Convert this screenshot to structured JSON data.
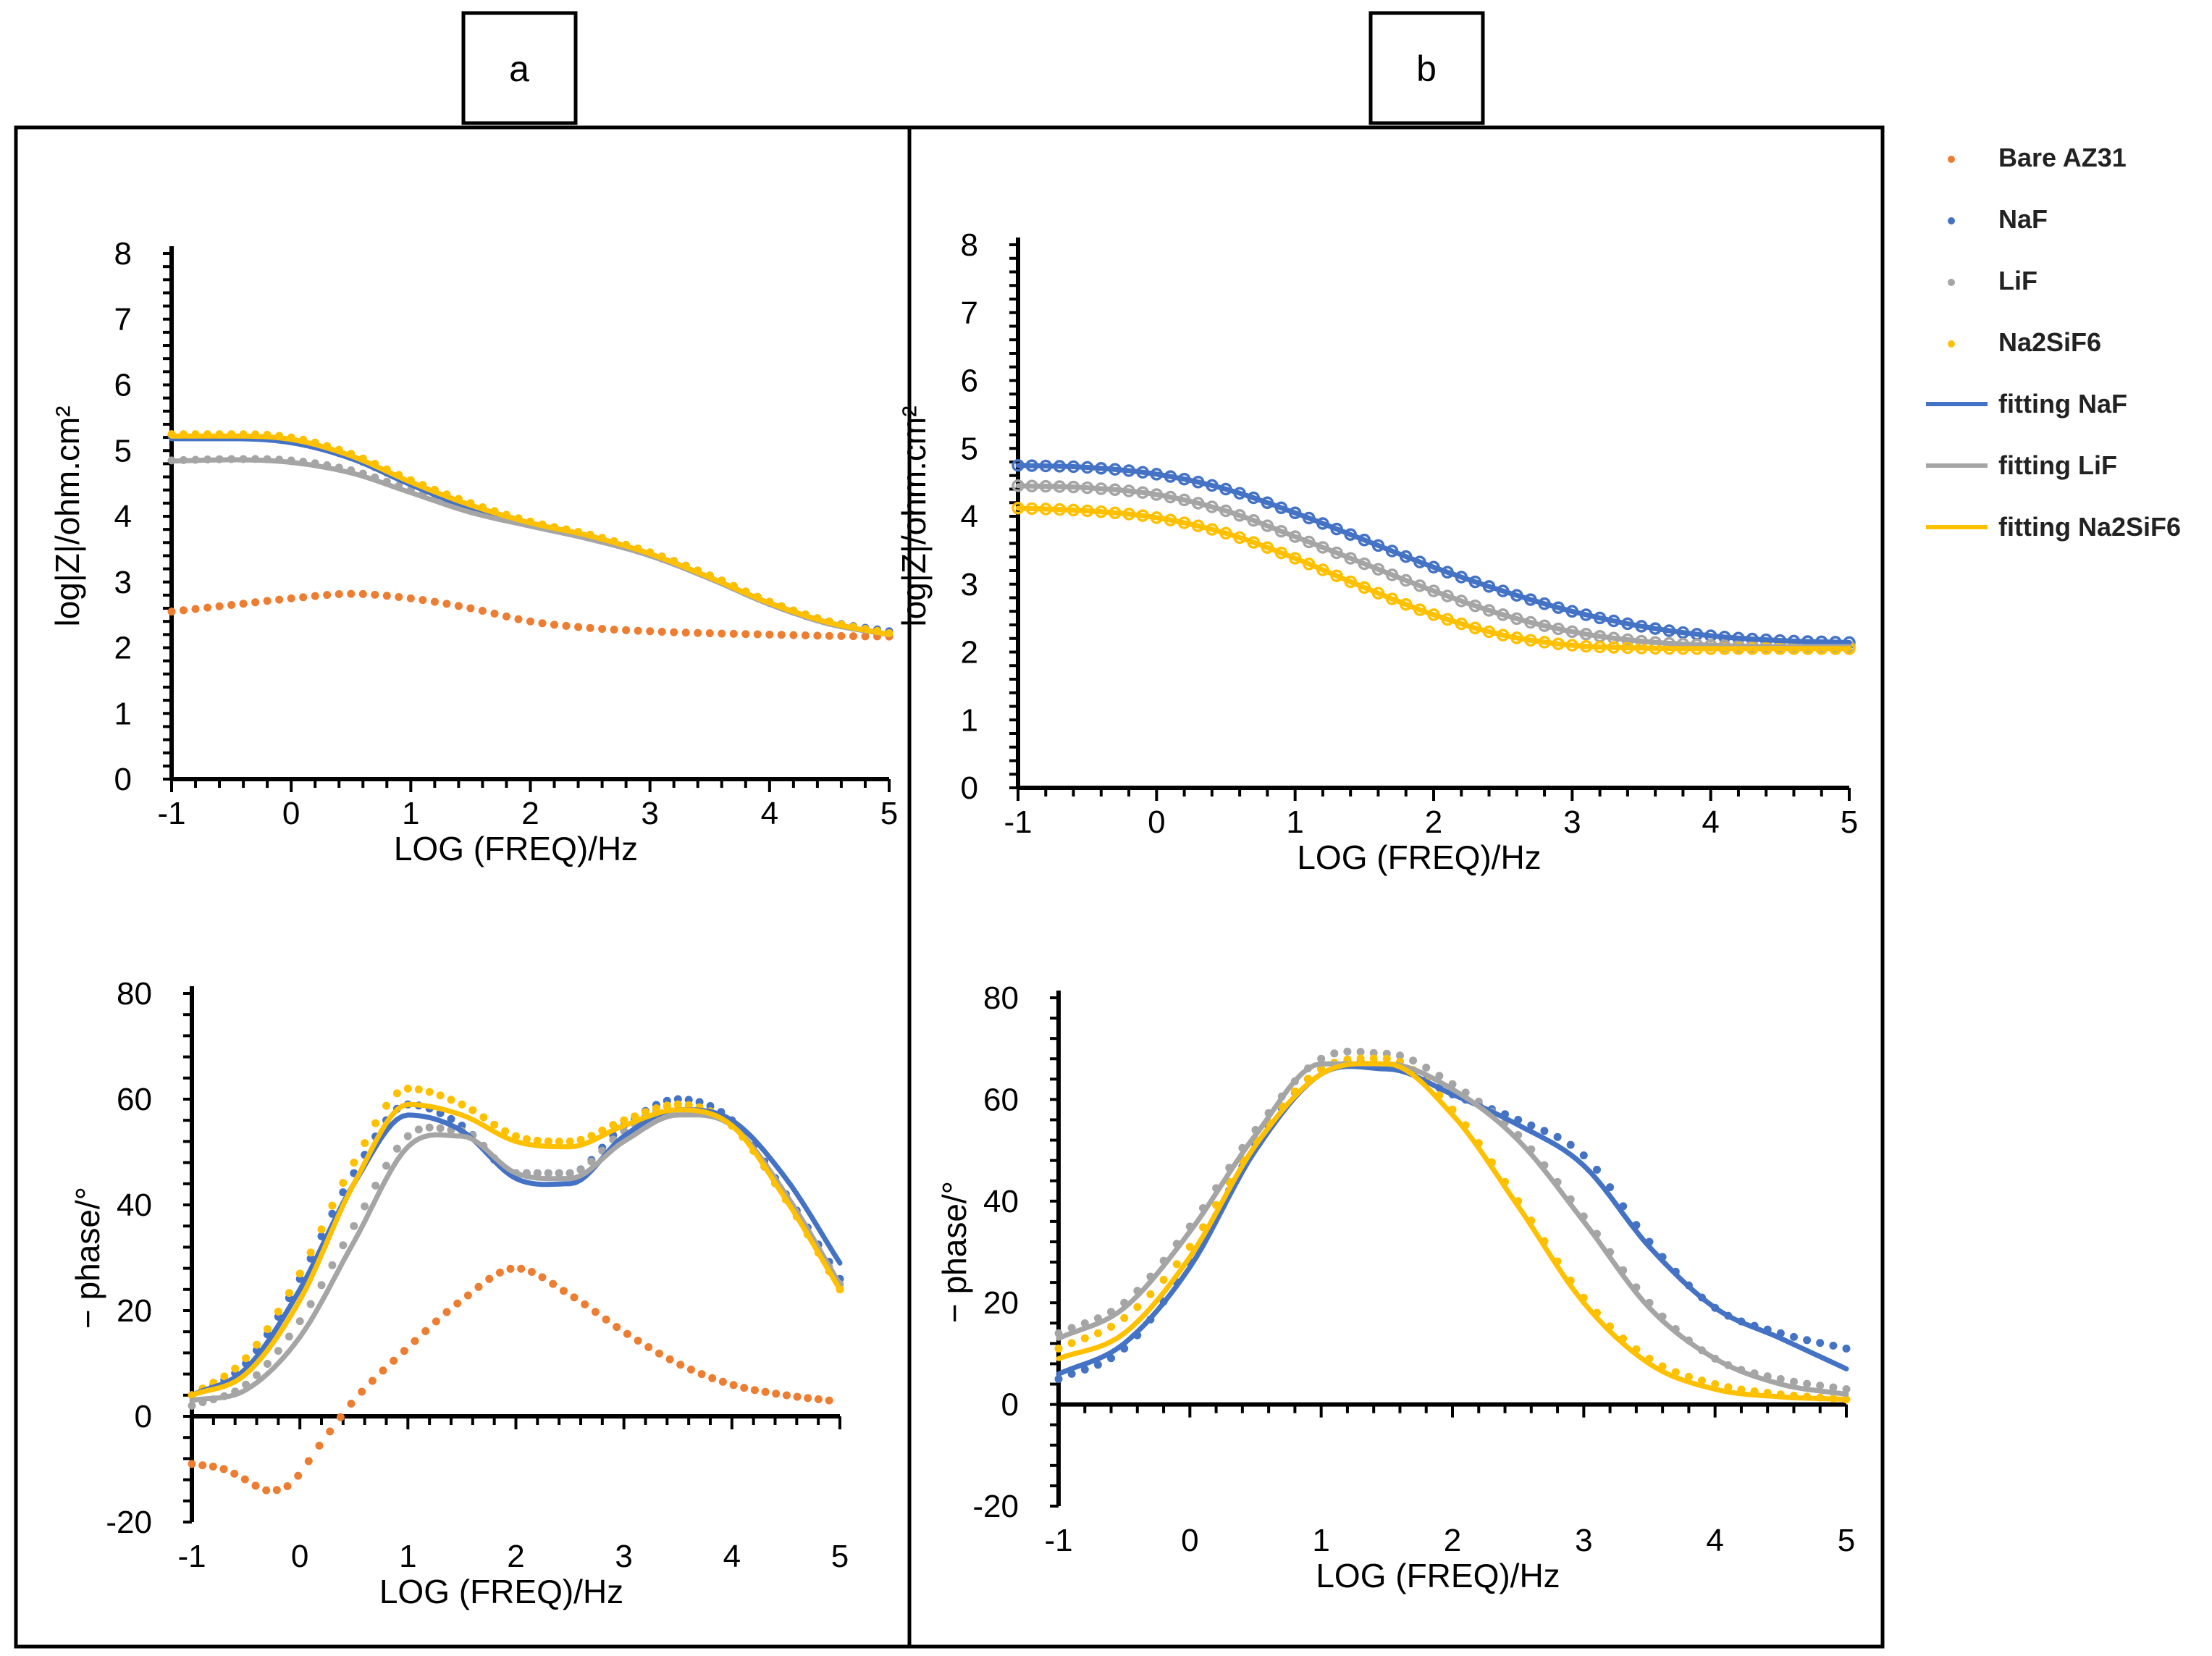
{
  "panel_labels": [
    "a",
    "b"
  ],
  "legend": [
    {
      "label": "Bare AZ31",
      "kind": "marker",
      "color": "#ED7D31"
    },
    {
      "label": "NaF",
      "kind": "marker",
      "color": "#4472C4"
    },
    {
      "label": "LiF",
      "kind": "marker",
      "color": "#A5A5A5"
    },
    {
      "label": "Na2SiF6",
      "kind": "marker",
      "color": "#FFC000"
    },
    {
      "label": "fitting NaF",
      "kind": "line",
      "color": "#4472C4"
    },
    {
      "label": "fitting LiF",
      "kind": "line",
      "color": "#A5A5A5"
    },
    {
      "label": "fitting Na2SiF6",
      "kind": "line",
      "color": "#FFC000"
    }
  ],
  "chart_data": [
    {
      "id": "a-top",
      "panel": "a",
      "type": "scatter",
      "xlabel": "LOG (FREQ)/Hz",
      "ylabel": "log|Z|/ohm.cm²",
      "xlim": [
        -1,
        5
      ],
      "ylim": [
        0,
        8
      ],
      "xticks": [
        -1,
        0,
        1,
        2,
        3,
        4,
        5
      ],
      "yticks": [
        0,
        1,
        2,
        3,
        4,
        5,
        6,
        7,
        8
      ],
      "series": [
        {
          "name": "Bare AZ31",
          "style": "dots",
          "color": "#ED7D31",
          "x": [
            -1,
            -0.5,
            0,
            0.5,
            1,
            1.5,
            2,
            2.5,
            3,
            3.5,
            4,
            4.5,
            5
          ],
          "y": [
            2.55,
            2.65,
            2.75,
            2.82,
            2.75,
            2.6,
            2.4,
            2.3,
            2.25,
            2.22,
            2.2,
            2.18,
            2.17
          ]
        },
        {
          "name": "NaF",
          "style": "dots",
          "color": "#4472C4",
          "x": [
            -1,
            -0.5,
            0,
            0.5,
            1,
            1.5,
            2,
            2.5,
            3,
            3.5,
            4,
            4.5,
            5
          ],
          "y": [
            5.22,
            5.22,
            5.15,
            4.9,
            4.5,
            4.15,
            3.9,
            3.7,
            3.45,
            3.1,
            2.7,
            2.4,
            2.25
          ]
        },
        {
          "name": "LiF",
          "style": "dots",
          "color": "#A5A5A5",
          "x": [
            -1,
            -0.5,
            0,
            0.5,
            1,
            1.5,
            2,
            2.5,
            3,
            3.5,
            4,
            4.5,
            5
          ],
          "y": [
            4.85,
            4.87,
            4.85,
            4.7,
            4.4,
            4.1,
            3.88,
            3.68,
            3.42,
            3.08,
            2.68,
            2.38,
            2.22
          ]
        },
        {
          "name": "Na2SiF6",
          "style": "dots",
          "color": "#FFC000",
          "x": [
            -1,
            -0.5,
            0,
            0.5,
            1,
            1.5,
            2,
            2.5,
            3,
            3.5,
            4,
            4.5,
            5
          ],
          "y": [
            5.25,
            5.25,
            5.2,
            4.95,
            4.55,
            4.2,
            3.92,
            3.72,
            3.45,
            3.1,
            2.7,
            2.4,
            2.22
          ]
        },
        {
          "name": "fitting NaF",
          "style": "line",
          "color": "#4472C4",
          "x": [
            -1,
            -0.5,
            0,
            0.5,
            1,
            1.5,
            2,
            2.5,
            3,
            3.5,
            4,
            4.5,
            5
          ],
          "y": [
            5.18,
            5.18,
            5.12,
            4.88,
            4.48,
            4.12,
            3.88,
            3.68,
            3.42,
            3.06,
            2.68,
            2.38,
            2.2
          ]
        },
        {
          "name": "fitting LiF",
          "style": "line",
          "color": "#A5A5A5",
          "x": [
            -1,
            -0.5,
            0,
            0.5,
            1,
            1.5,
            2,
            2.5,
            3,
            3.5,
            4,
            4.5,
            5
          ],
          "y": [
            4.84,
            4.86,
            4.82,
            4.66,
            4.36,
            4.06,
            3.85,
            3.65,
            3.4,
            3.05,
            2.66,
            2.36,
            2.2
          ]
        },
        {
          "name": "fitting Na2SiF6",
          "style": "line",
          "color": "#FFC000",
          "x": [
            -1,
            -0.5,
            0,
            0.5,
            1,
            1.5,
            2,
            2.5,
            3,
            3.5,
            4,
            4.5,
            5
          ],
          "y": [
            5.22,
            5.22,
            5.17,
            4.92,
            4.52,
            4.17,
            3.9,
            3.7,
            3.43,
            3.07,
            2.68,
            2.38,
            2.2
          ]
        }
      ]
    },
    {
      "id": "a-bottom",
      "panel": "a",
      "type": "scatter",
      "xlabel": "LOG (FREQ)/Hz",
      "ylabel": "− phase/°",
      "xlim": [
        -1,
        5
      ],
      "ylim": [
        -20,
        80
      ],
      "xticks": [
        -1,
        0,
        1,
        2,
        3,
        4,
        5
      ],
      "yticks": [
        -20,
        0,
        20,
        40,
        60,
        80
      ],
      "series": [
        {
          "name": "Bare AZ31",
          "style": "dots",
          "color": "#ED7D31",
          "x": [
            -1,
            -0.7,
            -0.5,
            -0.3,
            -0.1,
            0.2,
            0.5,
            1,
            1.5,
            2,
            2.5,
            3,
            3.5,
            4,
            4.5,
            4.9
          ],
          "y": [
            -9,
            -10,
            -12,
            -14,
            -13,
            -5,
            3,
            13,
            22,
            28,
            23,
            16,
            10,
            6,
            4,
            3
          ]
        },
        {
          "name": "NaF",
          "style": "dots",
          "color": "#4472C4",
          "x": [
            -1,
            -0.5,
            0,
            0.5,
            1,
            1.5,
            2,
            2.5,
            3,
            3.5,
            4,
            4.5,
            5
          ],
          "y": [
            4,
            10,
            26,
            46,
            59,
            55,
            46,
            46,
            55,
            60,
            56,
            42,
            26
          ]
        },
        {
          "name": "LiF",
          "style": "dots",
          "color": "#A5A5A5",
          "x": [
            -1,
            -0.5,
            0,
            0.5,
            1,
            1.5,
            2,
            2.5,
            3,
            3.5,
            4,
            4.5,
            5
          ],
          "y": [
            2,
            6,
            18,
            36,
            53,
            54,
            46,
            46,
            54,
            59,
            55,
            41,
            25
          ]
        },
        {
          "name": "Na2SiF6",
          "style": "dots",
          "color": "#FFC000",
          "x": [
            -1,
            -0.5,
            0,
            0.5,
            1,
            1.5,
            2,
            2.5,
            3,
            3.5,
            4,
            4.5,
            5
          ],
          "y": [
            4,
            11,
            27,
            48,
            62,
            59,
            53,
            52,
            56,
            59,
            55,
            41,
            24
          ]
        },
        {
          "name": "fitting NaF",
          "style": "line",
          "color": "#4472C4",
          "x": [
            -1,
            -0.5,
            0,
            0.5,
            1,
            1.5,
            2,
            2.5,
            3,
            3.5,
            4,
            4.5,
            5
          ],
          "y": [
            4,
            9,
            24,
            44,
            57,
            54,
            45,
            44,
            53,
            58,
            56,
            45,
            29
          ]
        },
        {
          "name": "fitting LiF",
          "style": "line",
          "color": "#A5A5A5",
          "x": [
            -1,
            -0.5,
            0,
            0.5,
            1,
            1.5,
            2,
            2.5,
            3,
            3.5,
            4,
            4.5,
            5
          ],
          "y": [
            3,
            5,
            15,
            33,
            51,
            53,
            46,
            45,
            52,
            57,
            55,
            42,
            25
          ]
        },
        {
          "name": "fitting Na2SiF6",
          "style": "line",
          "color": "#FFC000",
          "x": [
            -1,
            -0.5,
            0,
            0.5,
            1,
            1.5,
            2,
            2.5,
            3,
            3.5,
            4,
            4.5,
            5
          ],
          "y": [
            4,
            8,
            22,
            44,
            59,
            57,
            52,
            51,
            55,
            58,
            55,
            41,
            24
          ]
        }
      ]
    },
    {
      "id": "b-top",
      "panel": "b",
      "type": "scatter",
      "xlabel": "LOG (FREQ)/Hz",
      "ylabel": "log|Z|/ohm.cm²",
      "xlim": [
        -1,
        5
      ],
      "ylim": [
        0,
        8
      ],
      "xticks": [
        -1,
        0,
        1,
        2,
        3,
        4,
        5
      ],
      "yticks": [
        0,
        1,
        2,
        3,
        4,
        5,
        6,
        7,
        8
      ],
      "series": [
        {
          "name": "NaF",
          "style": "circles",
          "color": "#4472C4",
          "x": [
            -1,
            -0.5,
            0,
            0.5,
            1,
            1.5,
            2,
            2.5,
            3,
            3.5,
            4,
            4.5,
            5
          ],
          "y": [
            4.75,
            4.72,
            4.62,
            4.4,
            4.05,
            3.65,
            3.25,
            2.9,
            2.6,
            2.38,
            2.24,
            2.17,
            2.14
          ]
        },
        {
          "name": "LiF",
          "style": "circles",
          "color": "#A5A5A5",
          "x": [
            -1,
            -0.5,
            0,
            0.5,
            1,
            1.5,
            2,
            2.5,
            3,
            3.5,
            4,
            4.5,
            5
          ],
          "y": [
            4.45,
            4.42,
            4.32,
            4.08,
            3.7,
            3.3,
            2.9,
            2.55,
            2.3,
            2.16,
            2.1,
            2.08,
            2.08
          ]
        },
        {
          "name": "Na2SiF6",
          "style": "circles",
          "color": "#FFC000",
          "x": [
            -1,
            -0.5,
            0,
            0.5,
            1,
            1.5,
            2,
            2.5,
            3,
            3.5,
            4,
            4.5,
            5
          ],
          "y": [
            4.12,
            4.08,
            3.98,
            3.75,
            3.38,
            2.95,
            2.55,
            2.25,
            2.1,
            2.06,
            2.05,
            2.05,
            2.05
          ]
        },
        {
          "name": "fitting NaF",
          "style": "line",
          "color": "#4472C4",
          "x": [
            -1,
            -0.5,
            0,
            0.5,
            1,
            1.5,
            2,
            2.5,
            3,
            3.5,
            4,
            4.5,
            5
          ],
          "y": [
            4.75,
            4.72,
            4.62,
            4.4,
            4.05,
            3.65,
            3.25,
            2.9,
            2.6,
            2.38,
            2.24,
            2.17,
            2.14
          ]
        },
        {
          "name": "fitting LiF",
          "style": "line",
          "color": "#A5A5A5",
          "x": [
            -1,
            -0.5,
            0,
            0.5,
            1,
            1.5,
            2,
            2.5,
            3,
            3.5,
            4,
            4.5,
            5
          ],
          "y": [
            4.45,
            4.42,
            4.32,
            4.08,
            3.7,
            3.3,
            2.9,
            2.55,
            2.3,
            2.16,
            2.1,
            2.08,
            2.08
          ]
        },
        {
          "name": "fitting Na2SiF6",
          "style": "line",
          "color": "#FFC000",
          "x": [
            -1,
            -0.5,
            0,
            0.5,
            1,
            1.5,
            2,
            2.5,
            3,
            3.5,
            4,
            4.5,
            5
          ],
          "y": [
            4.12,
            4.08,
            3.98,
            3.75,
            3.38,
            2.95,
            2.55,
            2.25,
            2.1,
            2.06,
            2.05,
            2.05,
            2.05
          ]
        }
      ]
    },
    {
      "id": "b-bottom",
      "panel": "b",
      "type": "scatter",
      "xlabel": "LOG (FREQ)/Hz",
      "ylabel": "− phase/°",
      "xlim": [
        -1,
        5
      ],
      "ylim": [
        -20,
        80
      ],
      "xticks": [
        -1,
        0,
        1,
        2,
        3,
        4,
        5
      ],
      "yticks": [
        -20,
        0,
        20,
        40,
        60,
        80
      ],
      "series": [
        {
          "name": "NaF",
          "style": "dots",
          "color": "#4472C4",
          "x": [
            -1,
            -0.5,
            0,
            0.5,
            1,
            1.5,
            2,
            2.5,
            3,
            3.5,
            4,
            4.5,
            5
          ],
          "y": [
            5,
            11,
            28,
            51,
            66,
            67,
            61,
            56,
            49,
            32,
            19,
            14,
            11
          ]
        },
        {
          "name": "LiF",
          "style": "dots",
          "color": "#A5A5A5",
          "x": [
            -1,
            -0.5,
            0,
            0.5,
            1,
            1.5,
            2,
            2.5,
            3,
            3.5,
            4,
            4.5,
            5
          ],
          "y": [
            14,
            20,
            35,
            54,
            68,
            69,
            63,
            53,
            37,
            20,
            9,
            5,
            3
          ]
        },
        {
          "name": "Na2SiF6",
          "style": "dots",
          "color": "#FFC000",
          "x": [
            -1,
            -0.5,
            0,
            0.5,
            1,
            1.5,
            2,
            2.5,
            3,
            3.5,
            4,
            4.5,
            5
          ],
          "y": [
            11,
            17,
            31,
            52,
            66,
            68,
            58,
            40,
            21,
            9,
            4,
            2,
            1
          ]
        },
        {
          "name": "fitting NaF",
          "style": "line",
          "color": "#4472C4",
          "x": [
            -1,
            -0.5,
            0,
            0.5,
            1,
            1.5,
            2,
            2.5,
            3,
            3.5,
            4,
            4.5,
            5
          ],
          "y": [
            6,
            12,
            27,
            50,
            65,
            66,
            61,
            55,
            47,
            31,
            19,
            13,
            7
          ]
        },
        {
          "name": "fitting LiF",
          "style": "line",
          "color": "#A5A5A5",
          "x": [
            -1,
            -0.5,
            0,
            0.5,
            1,
            1.5,
            2,
            2.5,
            3,
            3.5,
            4,
            4.5,
            5
          ],
          "y": [
            13,
            19,
            34,
            53,
            67,
            67,
            62,
            52,
            36,
            19,
            9,
            4,
            2
          ]
        },
        {
          "name": "fitting Na2SiF6",
          "style": "line",
          "color": "#FFC000",
          "x": [
            -1,
            -0.5,
            0,
            0.5,
            1,
            1.5,
            2,
            2.5,
            3,
            3.5,
            4,
            4.5,
            5
          ],
          "y": [
            9,
            14,
            29,
            51,
            65,
            67,
            57,
            39,
            20,
            8,
            3,
            1.5,
            1
          ]
        }
      ]
    }
  ]
}
